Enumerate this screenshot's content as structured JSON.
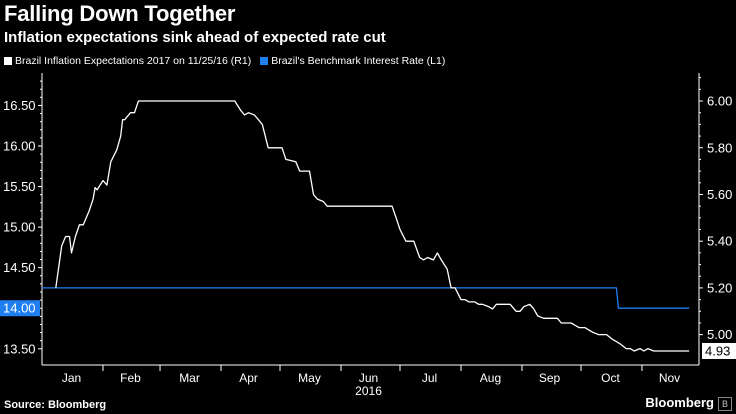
{
  "header": {
    "title": "Falling Down Together",
    "subtitle": "Inflation expectations sink ahead of expected rate cut"
  },
  "footer": {
    "source": "Source: Bloomberg",
    "brand": "Bloomberg",
    "brand_icon": "b-icon"
  },
  "chart_data": {
    "type": "line",
    "title": "Falling Down Together",
    "subtitle": "Inflation expectations sink ahead of expected rate cut",
    "colors": {
      "background": "#000000",
      "inflation": "#ffffff",
      "rate": "#1f7ff0",
      "axis": "#ffffff",
      "rate_badge": "#1f7ff0"
    },
    "x_axis": {
      "type": "date",
      "range": [
        "2016-01-01",
        "2016-11-30"
      ],
      "month_labels": [
        {
          "label": "Jan",
          "date": "2016-01-16"
        },
        {
          "label": "Feb",
          "date": "2016-02-15"
        },
        {
          "label": "Mar",
          "date": "2016-03-16"
        },
        {
          "label": "Apr",
          "date": "2016-04-15"
        },
        {
          "label": "May",
          "date": "2016-05-16"
        },
        {
          "label": "Jun",
          "date": "2016-06-15"
        },
        {
          "label": "Jul",
          "date": "2016-07-16"
        },
        {
          "label": "Aug",
          "date": "2016-08-16"
        },
        {
          "label": "Sep",
          "date": "2016-09-15"
        },
        {
          "label": "Oct",
          "date": "2016-10-16"
        },
        {
          "label": "Nov",
          "date": "2016-11-15"
        }
      ],
      "month_boundaries": [
        "2016-02-01",
        "2016-03-01",
        "2016-04-01",
        "2016-05-01",
        "2016-06-01",
        "2016-07-01",
        "2016-08-01",
        "2016-09-01",
        "2016-10-01",
        "2016-11-01"
      ],
      "year_label": "2016",
      "year_label_date": "2016-06-15"
    },
    "y_left": {
      "label": "Brazil's Benchmark Interest Rate (L1)",
      "range": [
        13.3,
        16.9
      ],
      "ticks": [
        13.5,
        14.0,
        14.5,
        15.0,
        15.5,
        16.0,
        16.5
      ],
      "tick_labels": [
        "13.50",
        "14.00",
        "14.50",
        "15.00",
        "15.50",
        "16.00",
        "16.50"
      ],
      "hidden_tick": "14.00"
    },
    "y_right": {
      "label": "Brazil Inflation Expectations 2017 on 11/25/16 (R1)",
      "range": [
        4.87,
        6.12
      ],
      "ticks": [
        5.0,
        5.2,
        5.4,
        5.6,
        5.8,
        6.0
      ],
      "tick_labels": [
        "5.00",
        "5.20",
        "5.40",
        "5.60",
        "5.80",
        "6.00"
      ]
    },
    "legend": {
      "placement": "top-left",
      "items": [
        {
          "name": "Brazil Inflation Expectations 2017 on 11/25/16 (R1)",
          "color": "#ffffff"
        },
        {
          "name": "Brazil's Benchmark Interest Rate (L1)",
          "color": "#1f7ff0"
        }
      ]
    },
    "series": [
      {
        "name": "Brazil's Benchmark Interest Rate (L1)",
        "axis": "left",
        "color": "#1f7ff0",
        "last_value_label": "14.00",
        "points": [
          [
            "2016-01-01",
            14.25
          ],
          [
            "2016-10-19",
            14.25
          ],
          [
            "2016-10-20",
            14.0
          ],
          [
            "2016-11-25",
            14.0
          ]
        ]
      },
      {
        "name": "Brazil Inflation Expectations 2017 on 11/25/16 (R1)",
        "axis": "right",
        "color": "#ffffff",
        "last_value_label": "4.93",
        "points": [
          [
            "2016-01-08",
            5.2
          ],
          [
            "2016-01-11",
            5.38
          ],
          [
            "2016-01-13",
            5.42
          ],
          [
            "2016-01-15",
            5.42
          ],
          [
            "2016-01-16",
            5.35
          ],
          [
            "2016-01-18",
            5.42
          ],
          [
            "2016-01-20",
            5.47
          ],
          [
            "2016-01-22",
            5.47
          ],
          [
            "2016-01-25",
            5.53
          ],
          [
            "2016-01-27",
            5.58
          ],
          [
            "2016-01-28",
            5.63
          ],
          [
            "2016-01-29",
            5.62
          ],
          [
            "2016-02-01",
            5.66
          ],
          [
            "2016-02-03",
            5.64
          ],
          [
            "2016-02-05",
            5.74
          ],
          [
            "2016-02-08",
            5.79
          ],
          [
            "2016-02-10",
            5.85
          ],
          [
            "2016-02-11",
            5.92
          ],
          [
            "2016-02-12",
            5.92
          ],
          [
            "2016-02-15",
            5.95
          ],
          [
            "2016-02-17",
            5.95
          ],
          [
            "2016-02-19",
            6.0
          ],
          [
            "2016-02-26",
            6.0
          ],
          [
            "2016-03-31",
            6.0
          ],
          [
            "2016-04-08",
            6.0
          ],
          [
            "2016-04-11",
            5.96
          ],
          [
            "2016-04-13",
            5.94
          ],
          [
            "2016-04-15",
            5.95
          ],
          [
            "2016-04-18",
            5.94
          ],
          [
            "2016-04-20",
            5.92
          ],
          [
            "2016-04-22",
            5.9
          ],
          [
            "2016-04-25",
            5.8
          ],
          [
            "2016-05-02",
            5.8
          ],
          [
            "2016-05-04",
            5.75
          ],
          [
            "2016-05-09",
            5.74
          ],
          [
            "2016-05-11",
            5.7
          ],
          [
            "2016-05-16",
            5.7
          ],
          [
            "2016-05-18",
            5.6
          ],
          [
            "2016-05-20",
            5.58
          ],
          [
            "2016-05-23",
            5.57
          ],
          [
            "2016-05-25",
            5.55
          ],
          [
            "2016-06-01",
            5.55
          ],
          [
            "2016-06-10",
            5.55
          ],
          [
            "2016-06-20",
            5.55
          ],
          [
            "2016-06-27",
            5.55
          ],
          [
            "2016-06-29",
            5.5
          ],
          [
            "2016-07-01",
            5.45
          ],
          [
            "2016-07-04",
            5.4
          ],
          [
            "2016-07-06",
            5.4
          ],
          [
            "2016-07-08",
            5.4
          ],
          [
            "2016-07-11",
            5.33
          ],
          [
            "2016-07-13",
            5.32
          ],
          [
            "2016-07-15",
            5.33
          ],
          [
            "2016-07-18",
            5.32
          ],
          [
            "2016-07-20",
            5.35
          ],
          [
            "2016-07-22",
            5.32
          ],
          [
            "2016-07-25",
            5.28
          ],
          [
            "2016-07-27",
            5.2
          ],
          [
            "2016-07-29",
            5.2
          ],
          [
            "2016-08-01",
            5.15
          ],
          [
            "2016-08-03",
            5.15
          ],
          [
            "2016-08-05",
            5.14
          ],
          [
            "2016-08-08",
            5.14
          ],
          [
            "2016-08-10",
            5.13
          ],
          [
            "2016-08-12",
            5.13
          ],
          [
            "2016-08-15",
            5.12
          ],
          [
            "2016-08-17",
            5.11
          ],
          [
            "2016-08-19",
            5.13
          ],
          [
            "2016-08-22",
            5.13
          ],
          [
            "2016-08-24",
            5.13
          ],
          [
            "2016-08-26",
            5.13
          ],
          [
            "2016-08-29",
            5.1
          ],
          [
            "2016-08-31",
            5.1
          ],
          [
            "2016-09-02",
            5.12
          ],
          [
            "2016-09-05",
            5.13
          ],
          [
            "2016-09-07",
            5.11
          ],
          [
            "2016-09-09",
            5.08
          ],
          [
            "2016-09-12",
            5.07
          ],
          [
            "2016-09-14",
            5.07
          ],
          [
            "2016-09-16",
            5.07
          ],
          [
            "2016-09-19",
            5.07
          ],
          [
            "2016-09-21",
            5.05
          ],
          [
            "2016-09-23",
            5.05
          ],
          [
            "2016-09-26",
            5.05
          ],
          [
            "2016-09-28",
            5.04
          ],
          [
            "2016-09-30",
            5.03
          ],
          [
            "2016-10-03",
            5.03
          ],
          [
            "2016-10-05",
            5.02
          ],
          [
            "2016-10-07",
            5.01
          ],
          [
            "2016-10-10",
            5.0
          ],
          [
            "2016-10-12",
            5.0
          ],
          [
            "2016-10-14",
            5.0
          ],
          [
            "2016-10-17",
            4.98
          ],
          [
            "2016-10-19",
            4.97
          ],
          [
            "2016-10-21",
            4.96
          ],
          [
            "2016-10-24",
            4.94
          ],
          [
            "2016-10-26",
            4.94
          ],
          [
            "2016-10-28",
            4.93
          ],
          [
            "2016-10-31",
            4.94
          ],
          [
            "2016-11-02",
            4.93
          ],
          [
            "2016-11-04",
            4.94
          ],
          [
            "2016-11-07",
            4.93
          ],
          [
            "2016-11-09",
            4.93
          ],
          [
            "2016-11-11",
            4.93
          ],
          [
            "2016-11-14",
            4.93
          ],
          [
            "2016-11-16",
            4.93
          ],
          [
            "2016-11-18",
            4.93
          ],
          [
            "2016-11-21",
            4.93
          ],
          [
            "2016-11-25",
            4.93
          ]
        ]
      }
    ]
  }
}
